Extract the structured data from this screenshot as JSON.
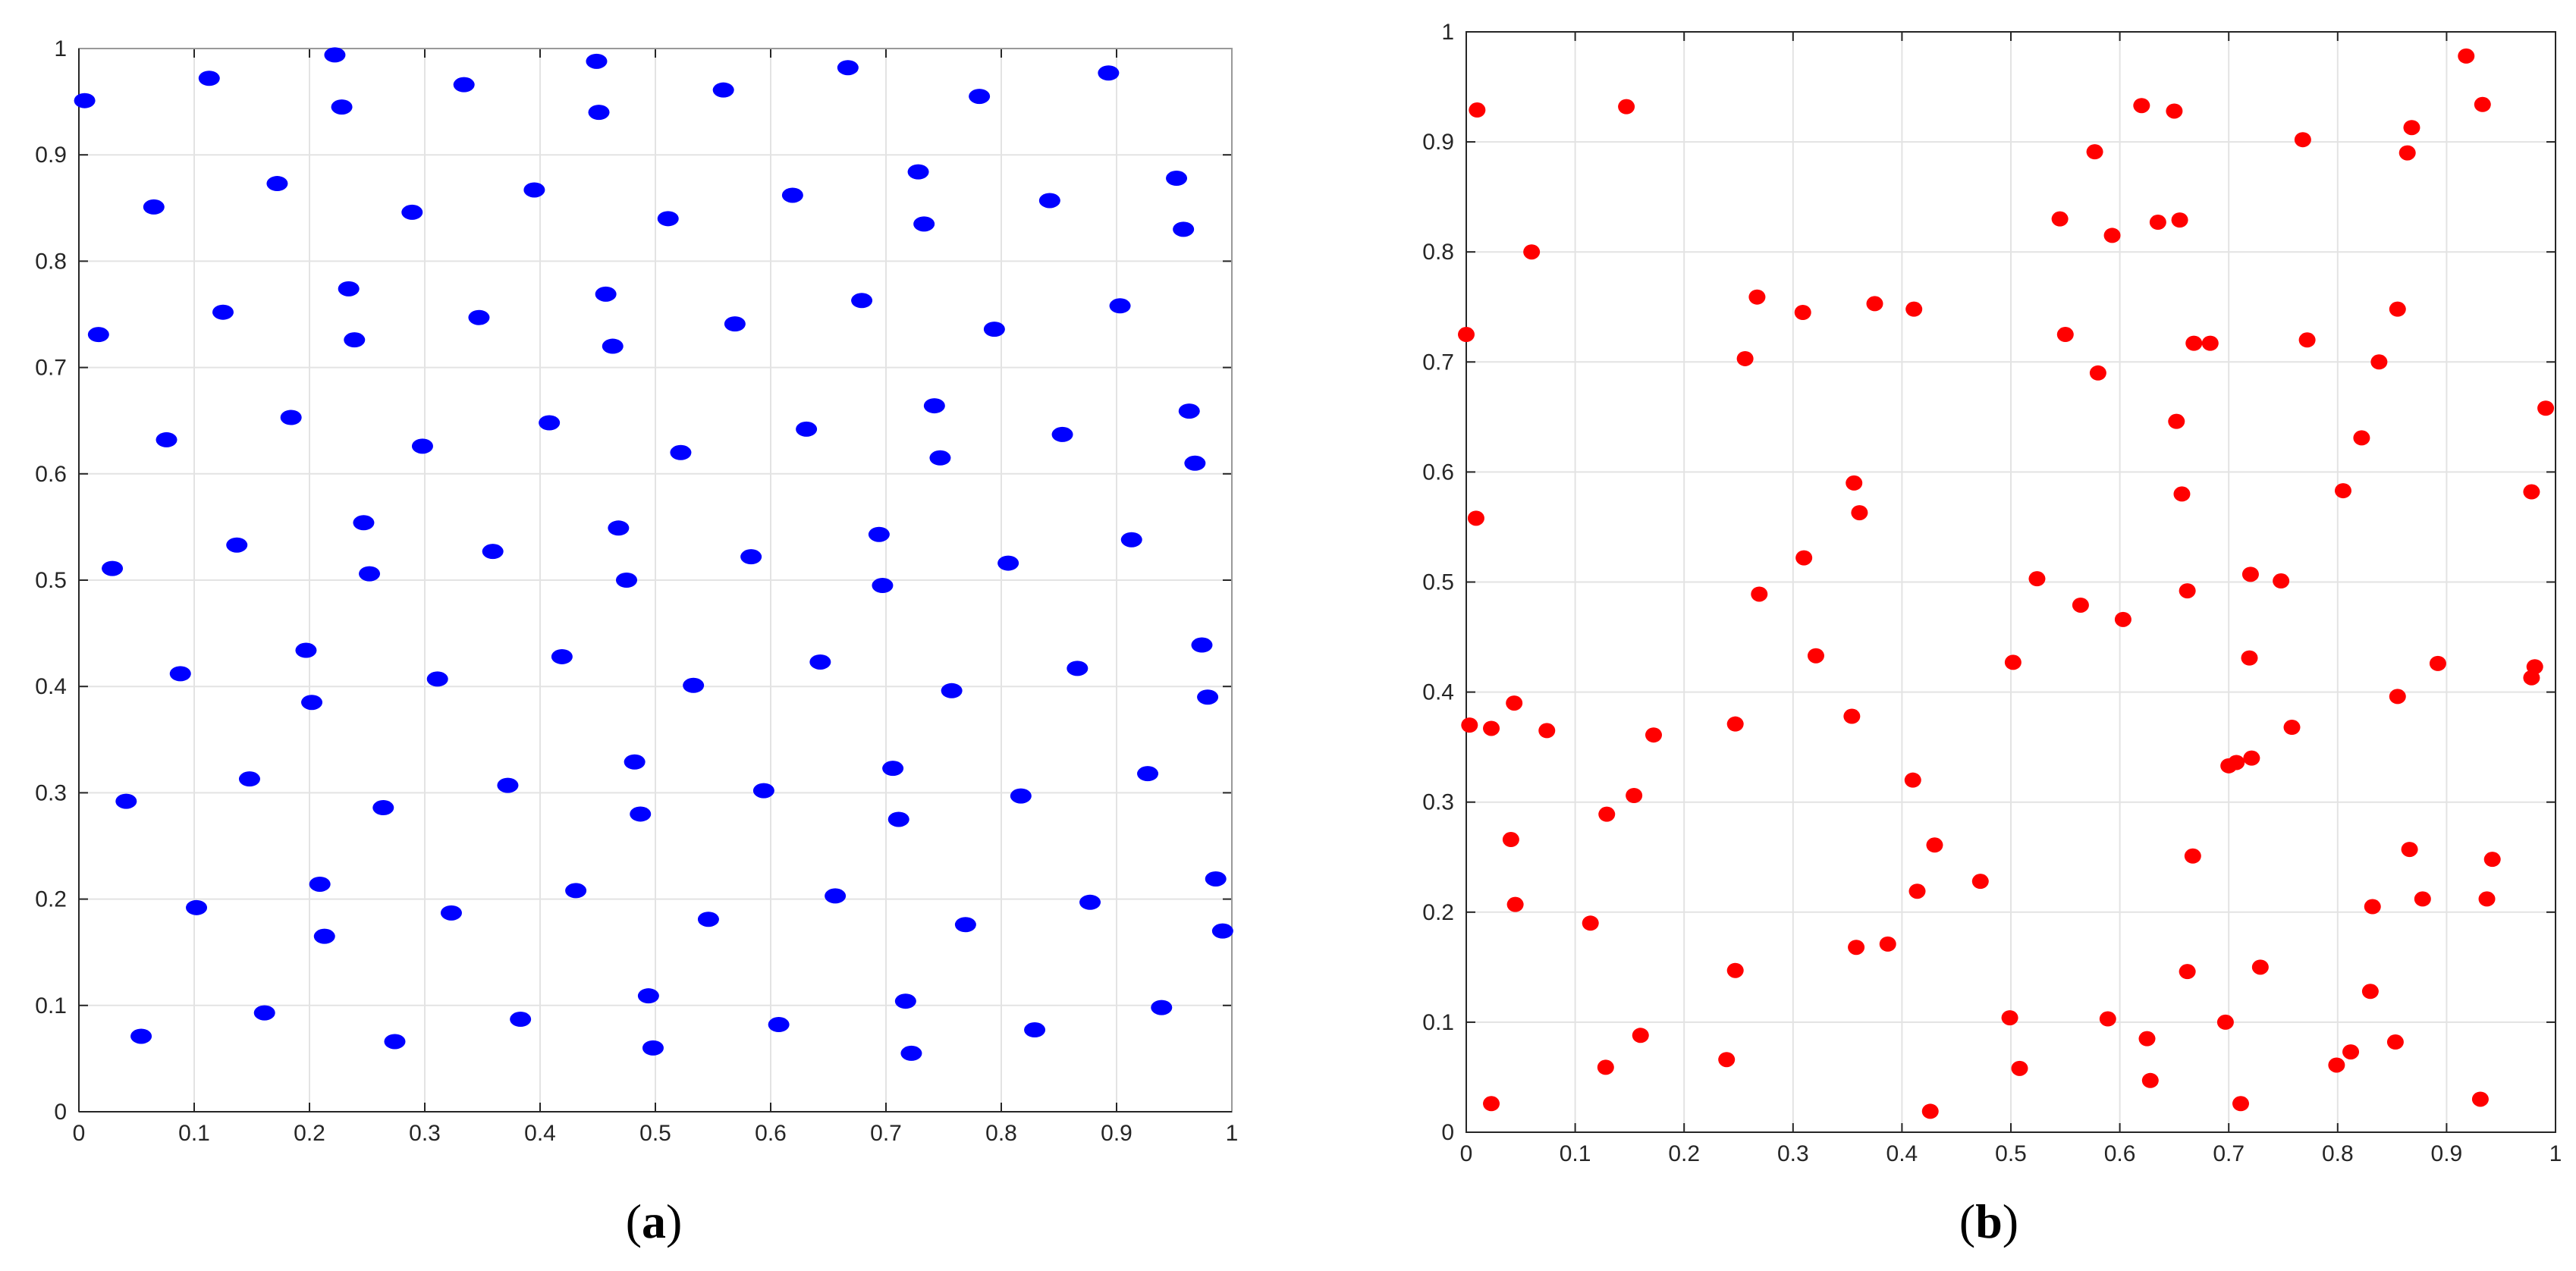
{
  "colors": {
    "panel_a_points": "#0000ff",
    "panel_b_points": "#ff0000",
    "grid": "#e3e3e3",
    "axes": "#262626"
  },
  "captions": {
    "a": "a",
    "b": "b"
  },
  "chart_data": [
    {
      "type": "scatter",
      "panel": "a",
      "title": "",
      "xlabel": "",
      "ylabel": "",
      "xlim": [
        0,
        1
      ],
      "ylim": [
        0,
        1
      ],
      "xticks": [
        "0",
        "0.1",
        "0.2",
        "0.3",
        "0.4",
        "0.5",
        "0.6",
        "0.7",
        "0.8",
        "0.9",
        "1"
      ],
      "yticks": [
        "0",
        "0.1",
        "0.2",
        "0.3",
        "0.4",
        "0.5",
        "0.6",
        "0.7",
        "0.8",
        "0.9",
        "1"
      ],
      "grid": true,
      "marker_color": "#0000ff",
      "x": [
        0.222,
        0.449,
        0.667,
        0.113,
        0.334,
        0.559,
        0.005,
        0.228,
        0.451,
        0.781,
        0.893,
        0.065,
        0.172,
        0.395,
        0.619,
        0.842,
        0.728,
        0.952,
        0.289,
        0.511,
        0.733,
        0.958,
        0.017,
        0.125,
        0.234,
        0.347,
        0.457,
        0.569,
        0.679,
        0.794,
        0.903,
        0.239,
        0.463,
        0.184,
        0.408,
        0.631,
        0.742,
        0.853,
        0.076,
        0.298,
        0.522,
        0.747,
        0.963,
        0.968,
        0.247,
        0.583,
        0.694,
        0.913,
        0.137,
        0.359,
        0.468,
        0.029,
        0.252,
        0.475,
        0.697,
        0.806,
        0.197,
        0.419,
        0.643,
        0.866,
        0.088,
        0.311,
        0.533,
        0.757,
        0.974,
        0.202,
        0.979,
        0.041,
        0.148,
        0.372,
        0.482,
        0.594,
        0.706,
        0.817,
        0.927,
        0.264,
        0.487,
        0.711,
        0.209,
        0.431,
        0.656,
        0.877,
        0.986,
        0.102,
        0.323,
        0.546,
        0.213,
        0.769,
        0.992,
        0.161,
        0.383,
        0.494,
        0.717,
        0.939,
        0.054,
        0.607,
        0.829,
        0.274,
        0.498,
        0.722
      ],
      "y": [
        0.994,
        0.988,
        0.982,
        0.972,
        0.966,
        0.961,
        0.951,
        0.945,
        0.94,
        0.955,
        0.977,
        0.851,
        0.873,
        0.867,
        0.862,
        0.857,
        0.884,
        0.878,
        0.846,
        0.84,
        0.835,
        0.83,
        0.731,
        0.752,
        0.774,
        0.747,
        0.769,
        0.741,
        0.763,
        0.736,
        0.758,
        0.726,
        0.72,
        0.653,
        0.648,
        0.642,
        0.664,
        0.637,
        0.632,
        0.626,
        0.62,
        0.615,
        0.659,
        0.61,
        0.554,
        0.522,
        0.543,
        0.538,
        0.533,
        0.527,
        0.549,
        0.511,
        0.506,
        0.5,
        0.495,
        0.516,
        0.434,
        0.428,
        0.423,
        0.417,
        0.412,
        0.407,
        0.401,
        0.396,
        0.439,
        0.385,
        0.39,
        0.292,
        0.313,
        0.307,
        0.329,
        0.302,
        0.323,
        0.297,
        0.318,
        0.286,
        0.28,
        0.275,
        0.214,
        0.208,
        0.203,
        0.197,
        0.219,
        0.192,
        0.187,
        0.181,
        0.165,
        0.176,
        0.17,
        0.093,
        0.087,
        0.109,
        0.104,
        0.098,
        0.071,
        0.082,
        0.077,
        0.066,
        0.06,
        0.055
      ]
    },
    {
      "type": "scatter",
      "panel": "b",
      "title": "",
      "xlabel": "",
      "ylabel": "",
      "xlim": [
        0,
        1
      ],
      "ylim": [
        0,
        1
      ],
      "xticks": [
        "0",
        "0.1",
        "0.2",
        "0.3",
        "0.4",
        "0.5",
        "0.6",
        "0.7",
        "0.8",
        "0.9",
        "1"
      ],
      "yticks": [
        "0",
        "0.1",
        "0.2",
        "0.3",
        "0.4",
        "0.5",
        "0.6",
        "0.7",
        "0.8",
        "0.9",
        "1"
      ],
      "grid": true,
      "marker_color": "#ff0000",
      "x": [
        0.918,
        0.01,
        0.147,
        0.933,
        0.62,
        0.65,
        0.577,
        0.768,
        0.868,
        0.864,
        0.06,
        0.545,
        0.635,
        0.655,
        0.593,
        0.267,
        0.309,
        0.375,
        0.411,
        0.855,
        0.0,
        0.55,
        0.772,
        0.256,
        0.838,
        0.58,
        0.668,
        0.683,
        0.652,
        0.822,
        0.991,
        0.356,
        0.805,
        0.978,
        0.657,
        0.009,
        0.361,
        0.31,
        0.72,
        0.524,
        0.748,
        0.269,
        0.662,
        0.564,
        0.603,
        0.321,
        0.719,
        0.892,
        0.502,
        0.855,
        0.981,
        0.978,
        0.044,
        0.354,
        0.003,
        0.023,
        0.074,
        0.172,
        0.247,
        0.758,
        0.41,
        0.721,
        0.707,
        0.7,
        0.154,
        0.129,
        0.041,
        0.43,
        0.667,
        0.866,
        0.942,
        0.472,
        0.414,
        0.045,
        0.832,
        0.878,
        0.937,
        0.358,
        0.387,
        0.114,
        0.729,
        0.247,
        0.662,
        0.83,
        0.499,
        0.589,
        0.697,
        0.16,
        0.853,
        0.625,
        0.812,
        0.799,
        0.239,
        0.128,
        0.508,
        0.628,
        0.023,
        0.711,
        0.931,
        0.426
      ],
      "y": [
        0.978,
        0.929,
        0.932,
        0.934,
        0.933,
        0.928,
        0.891,
        0.902,
        0.913,
        0.89,
        0.8,
        0.83,
        0.827,
        0.829,
        0.815,
        0.759,
        0.745,
        0.753,
        0.748,
        0.748,
        0.725,
        0.725,
        0.72,
        0.703,
        0.7,
        0.69,
        0.717,
        0.717,
        0.646,
        0.631,
        0.658,
        0.59,
        0.583,
        0.582,
        0.58,
        0.558,
        0.563,
        0.522,
        0.507,
        0.503,
        0.501,
        0.489,
        0.492,
        0.479,
        0.466,
        0.433,
        0.431,
        0.426,
        0.427,
        0.396,
        0.423,
        0.413,
        0.39,
        0.378,
        0.37,
        0.367,
        0.365,
        0.361,
        0.371,
        0.368,
        0.32,
        0.34,
        0.336,
        0.333,
        0.306,
        0.289,
        0.266,
        0.261,
        0.251,
        0.257,
        0.248,
        0.228,
        0.219,
        0.207,
        0.205,
        0.212,
        0.212,
        0.168,
        0.171,
        0.19,
        0.15,
        0.147,
        0.146,
        0.128,
        0.104,
        0.103,
        0.1,
        0.088,
        0.082,
        0.085,
        0.073,
        0.061,
        0.066,
        0.059,
        0.058,
        0.047,
        0.026,
        0.026,
        0.03,
        0.019
      ]
    }
  ]
}
